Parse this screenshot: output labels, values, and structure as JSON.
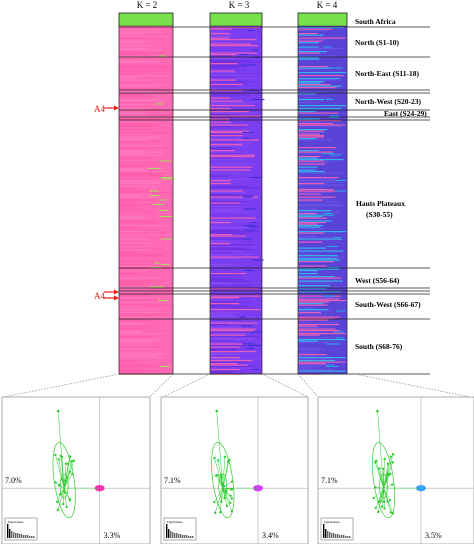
{
  "columns": [
    {
      "label": "K = 2",
      "palette": [
        "#ff69b4",
        "#ff5aa8",
        "#ff7bc0"
      ],
      "accent": "#a7e05a"
    },
    {
      "label": "K = 3",
      "palette": [
        "#7a3df0",
        "#6b2fe0",
        "#ff63b2",
        "#8a4af3"
      ],
      "accent": "#3a2fd6"
    },
    {
      "label": "K = 4",
      "palette": [
        "#5a44d8",
        "#2fc6ee",
        "#ff63b2",
        "#6b52e6"
      ],
      "accent": "#2aa6e8"
    }
  ],
  "header_color": "#77e04a",
  "regions": [
    {
      "label": "South Africa"
    },
    {
      "label": "North (S1-10)"
    },
    {
      "label": "North-East (S11-18)"
    },
    {
      "label": "North-West (S20-23)"
    },
    {
      "label": "East (S24-29)"
    },
    {
      "label": "Hauts  Plateaux\n(S30-55)"
    },
    {
      "label": "West (S56-64)"
    },
    {
      "label": "South-West (S66-67)"
    },
    {
      "label": "South (S68-76)"
    }
  ],
  "markers": [
    {
      "label": "A4"
    },
    {
      "label": "A4"
    }
  ],
  "marker_color": "#e8201a",
  "pca_panels": [
    {
      "axis1": "7.0%",
      "axis2": "3.3%",
      "blob_color": "#ff2fb0",
      "eigen_label": "Eigenvalues"
    },
    {
      "axis1": "7.1%",
      "axis2": "3.4%",
      "blob_color": "#d63cff",
      "eigen_label": "Eigenvalues"
    },
    {
      "axis1": "7.1%",
      "axis2": "3.5%",
      "blob_color": "#3aa0ff",
      "eigen_label": "Eigenvalues"
    }
  ],
  "pca_point_color": "#2ecc2e"
}
